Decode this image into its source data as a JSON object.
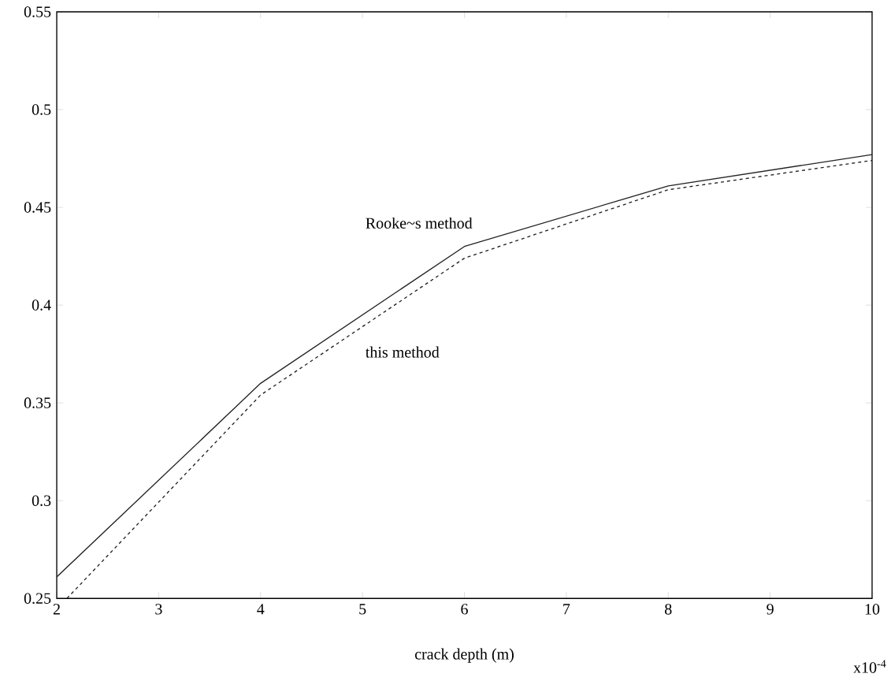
{
  "chart_data": {
    "type": "line",
    "xlabel": "crack depth (m)",
    "x": [
      2,
      4,
      6,
      8,
      10
    ],
    "series": [
      {
        "color": "#222222",
        "line_style": "solid",
        "values": [
          0.261,
          0.36,
          0.43,
          0.461,
          0.477
        ]
      },
      {
        "color": "#222222",
        "line_style": "dashed",
        "x": [
          2.1,
          4,
          6,
          8,
          10
        ],
        "values": [
          0.25,
          0.354,
          0.424,
          0.459,
          0.474
        ]
      }
    ],
    "xlim": [
      2,
      10
    ],
    "xticks": [
      2,
      3,
      4,
      5,
      6,
      7,
      8,
      9,
      10
    ],
    "ylim": [
      0.25,
      0.55
    ],
    "yticks": [
      0.25,
      0.3,
      0.35,
      0.4,
      0.45,
      0.5,
      0.55
    ],
    "annotations": [
      "Rooke~s method",
      "this method",
      "x10$^{-4}$"
    ],
    "grid": false,
    "marker": "none"
  }
}
